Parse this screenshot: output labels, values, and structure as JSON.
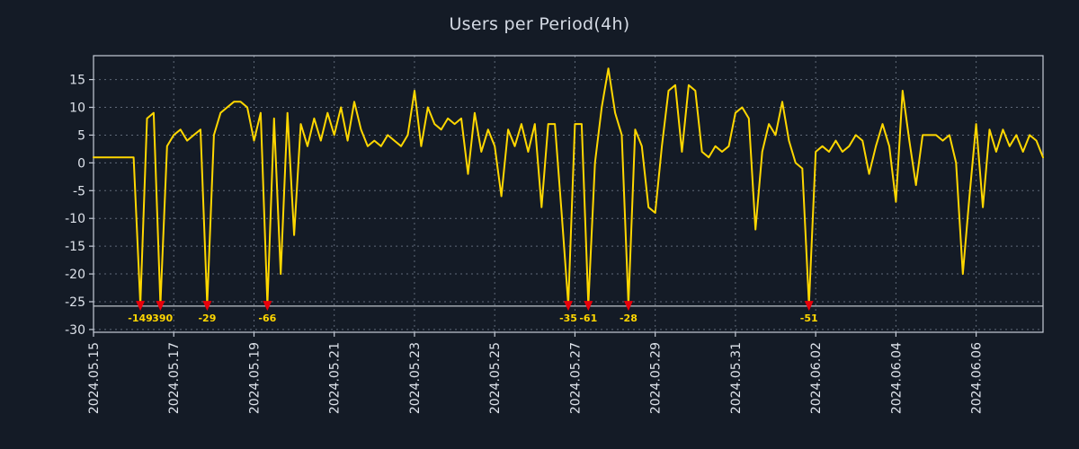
{
  "title": "Users per Period(4h)",
  "chart_data": {
    "type": "line",
    "title": "Users per Period(4h)",
    "period": "4h",
    "points_per_day": 6,
    "x_tick_labels": [
      "2024.05.15",
      "2024.05.17",
      "2024.05.19",
      "2024.05.21",
      "2024.05.23",
      "2024.05.25",
      "2024.05.27",
      "2024.05.29",
      "2024.05.31",
      "2024.06.02",
      "2024.06.04",
      "2024.06.06"
    ],
    "x_tick_indices": [
      0,
      12,
      24,
      36,
      48,
      60,
      72,
      84,
      96,
      108,
      120,
      132
    ],
    "y_ticks": [
      15,
      10,
      5,
      0,
      -5,
      -10,
      -15,
      -20,
      -25,
      -30
    ],
    "xlim": [
      0,
      142
    ],
    "ylim": [
      -30.5,
      19.3
    ],
    "grid": true,
    "legend": "none",
    "clip_value": -25.5,
    "threshold_line_value": -25.8,
    "values": [
      1,
      1,
      1,
      1,
      1,
      1,
      1,
      -149,
      8,
      9,
      -390,
      3,
      5,
      6,
      4,
      5,
      6,
      -29,
      5,
      9,
      10,
      11,
      11,
      10,
      4,
      9,
      -66,
      8,
      -20,
      9,
      -13,
      7,
      3,
      8,
      4,
      9,
      5,
      10,
      4,
      11,
      6,
      3,
      4,
      3,
      5,
      4,
      3,
      5,
      13,
      3,
      10,
      7,
      6,
      8,
      7,
      8,
      -2,
      9,
      2,
      6,
      3,
      -6,
      6,
      3,
      7,
      2,
      7,
      -8,
      7,
      7,
      -9,
      -35,
      7,
      7,
      -61,
      0,
      10,
      17,
      9,
      5,
      -28,
      6,
      3,
      -8,
      -9,
      3,
      13,
      14,
      2,
      14,
      13,
      2,
      1,
      3,
      2,
      3,
      9,
      10,
      8,
      -12,
      2,
      7,
      5,
      11,
      4,
      0,
      -1,
      -51,
      2,
      3,
      2,
      4,
      2,
      3,
      5,
      4,
      -2,
      3,
      7,
      3,
      -7,
      13,
      4,
      -4,
      5,
      5,
      5,
      4,
      5,
      0,
      -20,
      -6,
      7,
      -8,
      6,
      2,
      6,
      3,
      5,
      2,
      5,
      4,
      1
    ],
    "annotations": [
      {
        "index": 7,
        "label": "-149"
      },
      {
        "index": 10,
        "label": "-390"
      },
      {
        "index": 17,
        "label": "-29"
      },
      {
        "index": 26,
        "label": "-66"
      },
      {
        "index": 71,
        "label": "-35"
      },
      {
        "index": 74,
        "label": "-61"
      },
      {
        "index": 80,
        "label": "-28"
      },
      {
        "index": 107,
        "label": "-51"
      }
    ],
    "colors": {
      "background": "#141b26",
      "line": "#ffd700",
      "grid": "#6e7888",
      "frame": "#c6ccd8",
      "tick_label": "#dde2ea",
      "title": "#d4dae4",
      "marker": "#e8000b",
      "annotation": "#ffd700",
      "threshold": "#e8ecf2"
    }
  }
}
